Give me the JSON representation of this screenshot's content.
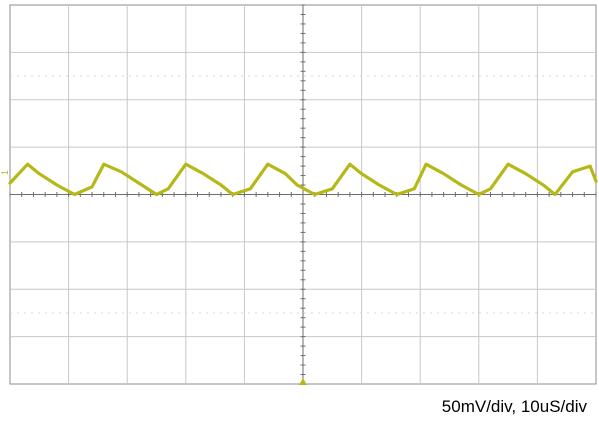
{
  "chart_data": {
    "type": "line",
    "grid": true,
    "caption": "50mV/div, 10uS/div",
    "channel_marker": "1",
    "trigger_marker": "trigger-arrow-icon",
    "x_divisions": 10,
    "y_divisions": 8,
    "xlim": [
      0,
      100
    ],
    "ylim": [
      -200,
      200
    ],
    "x_unit": "us",
    "y_unit": "mV",
    "series": [
      {
        "color": "#b5b817",
        "x": [
          0,
          3,
          5,
          8,
          11,
          14,
          16,
          19,
          22,
          25,
          27,
          30,
          33,
          36,
          38,
          41,
          44,
          47,
          49,
          52,
          55,
          58,
          60,
          63,
          66,
          69,
          71,
          74,
          77,
          80,
          82,
          85,
          88,
          91,
          93,
          96,
          99,
          100
        ],
        "y": [
          12,
          32,
          22,
          10,
          0,
          8,
          32,
          24,
          12,
          0,
          6,
          32,
          22,
          10,
          0,
          6,
          32,
          22,
          10,
          0,
          6,
          32,
          22,
          10,
          0,
          6,
          32,
          22,
          10,
          0,
          6,
          32,
          22,
          10,
          0,
          24,
          30,
          14
        ]
      }
    ]
  }
}
